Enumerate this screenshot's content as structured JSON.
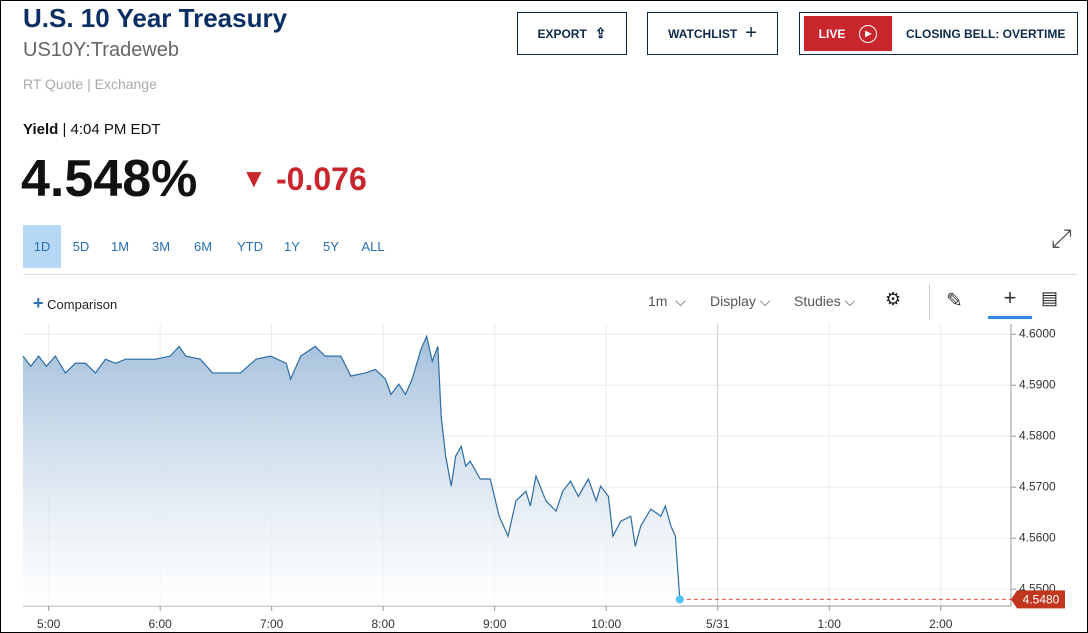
{
  "header": {
    "title": "U.S. 10 Year Treasury",
    "symbol": "US10Y:Tradeweb",
    "source": "RT Quote | Exchange"
  },
  "buttons": {
    "export": "EXPORT",
    "watchlist": "WATCHLIST",
    "live": "LIVE",
    "closing_bell": "CLOSING BELL: OVERTIME"
  },
  "quote": {
    "label": "Yield",
    "time": "4:04 PM EDT",
    "last": "4.548%",
    "change": "-0.076"
  },
  "periods": [
    "1D",
    "5D",
    "1M",
    "3M",
    "6M",
    "YTD",
    "1Y",
    "5Y",
    "ALL"
  ],
  "selected_period": 0,
  "toolbar": {
    "comparison": "Comparison",
    "interval": "1m",
    "display": "Display",
    "studies": "Studies"
  },
  "chart_data": {
    "type": "line",
    "x": [
      4.77,
      4.84,
      4.91,
      4.98,
      5.06,
      5.15,
      5.24,
      5.33,
      5.42,
      5.51,
      5.6,
      5.69,
      5.83,
      5.96,
      6.09,
      6.17,
      6.23,
      6.36,
      6.47,
      6.59,
      6.72,
      6.86,
      6.99,
      7.13,
      7.17,
      7.26,
      7.39,
      7.48,
      7.62,
      7.71,
      7.84,
      7.93,
      8.02,
      8.07,
      8.14,
      8.2,
      8.26,
      8.34,
      8.39,
      8.44,
      8.49,
      8.52,
      8.56,
      8.61,
      8.65,
      8.7,
      8.74,
      8.78,
      8.87,
      8.96,
      9.04,
      9.12,
      9.19,
      9.28,
      9.32,
      9.37,
      9.46,
      9.55,
      9.61,
      9.68,
      9.75,
      9.84,
      9.91,
      9.95,
      10.02,
      10.06,
      10.13,
      10.22,
      10.26,
      10.31,
      10.4,
      10.49,
      10.53,
      10.58,
      10.62,
      10.66
    ],
    "series": [
      {
        "name": "US10Y",
        "color": "#2c6ca3",
        "values": [
          4.5957,
          4.5937,
          4.5957,
          4.5937,
          4.5957,
          4.5924,
          4.5943,
          4.5943,
          4.5924,
          4.5951,
          4.5943,
          4.5951,
          4.5951,
          4.5951,
          4.5957,
          4.5976,
          4.5957,
          4.5951,
          4.5924,
          4.5924,
          4.5924,
          4.5951,
          4.5957,
          4.5943,
          4.5912,
          4.5957,
          4.5976,
          4.5957,
          4.5957,
          4.5918,
          4.5924,
          4.5931,
          4.5912,
          4.5882,
          4.5902,
          4.5882,
          4.5912,
          4.5971,
          4.5996,
          4.5947,
          4.5976,
          4.5839,
          4.5761,
          4.5702,
          4.5761,
          4.578,
          4.5741,
          4.5751,
          4.5716,
          4.5716,
          4.5643,
          4.5604,
          4.5673,
          4.5692,
          4.5663,
          4.5722,
          4.5673,
          4.5653,
          4.5692,
          4.5712,
          4.5682,
          4.5716,
          4.5673,
          4.5702,
          4.5682,
          4.5604,
          4.5633,
          4.5643,
          4.5584,
          4.5624,
          4.5657,
          4.5643,
          4.5663,
          4.5624,
          4.5604,
          4.548
        ],
        "value_labels": [
          null,
          null,
          null,
          null,
          null,
          null,
          null,
          null,
          null,
          null,
          null,
          null,
          null,
          null,
          null,
          null,
          null,
          null,
          null,
          null,
          null,
          null,
          null,
          null,
          null,
          null,
          null,
          null,
          null,
          null,
          null,
          null,
          null,
          null,
          null,
          null,
          null,
          null,
          null,
          null,
          null,
          null,
          null,
          null,
          null,
          null,
          null,
          null,
          null,
          null,
          null,
          null,
          null,
          null,
          null,
          null,
          null,
          null,
          null,
          null,
          null,
          null,
          null,
          null,
          null,
          null,
          null,
          null,
          null,
          null,
          null,
          null,
          null,
          null,
          null,
          "4.5480"
        ]
      }
    ],
    "xlim": [
      4.77,
      13.63
    ],
    "xticks": [
      {
        "value": 5,
        "label": "5:00"
      },
      {
        "value": 6,
        "label": "6:00"
      },
      {
        "value": 7,
        "label": "7:00"
      },
      {
        "value": 8,
        "label": "8:00"
      },
      {
        "value": 9,
        "label": "9:00"
      },
      {
        "value": 10,
        "label": "10:00"
      },
      {
        "value": 11,
        "label": "5/31"
      },
      {
        "value": 12,
        "label": "1:00"
      },
      {
        "value": 13,
        "label": "2:00"
      }
    ],
    "ylim": [
      4.5467,
      4.602
    ],
    "yticks": [
      {
        "value": 4.55,
        "label": "4.5500"
      },
      {
        "value": 4.56,
        "label": "4.5600"
      },
      {
        "value": 4.57,
        "label": "4.5700"
      },
      {
        "value": 4.58,
        "label": "4.5800"
      },
      {
        "value": 4.59,
        "label": "4.5900"
      },
      {
        "value": 4.6,
        "label": "4.6000"
      }
    ],
    "grid": true
  }
}
